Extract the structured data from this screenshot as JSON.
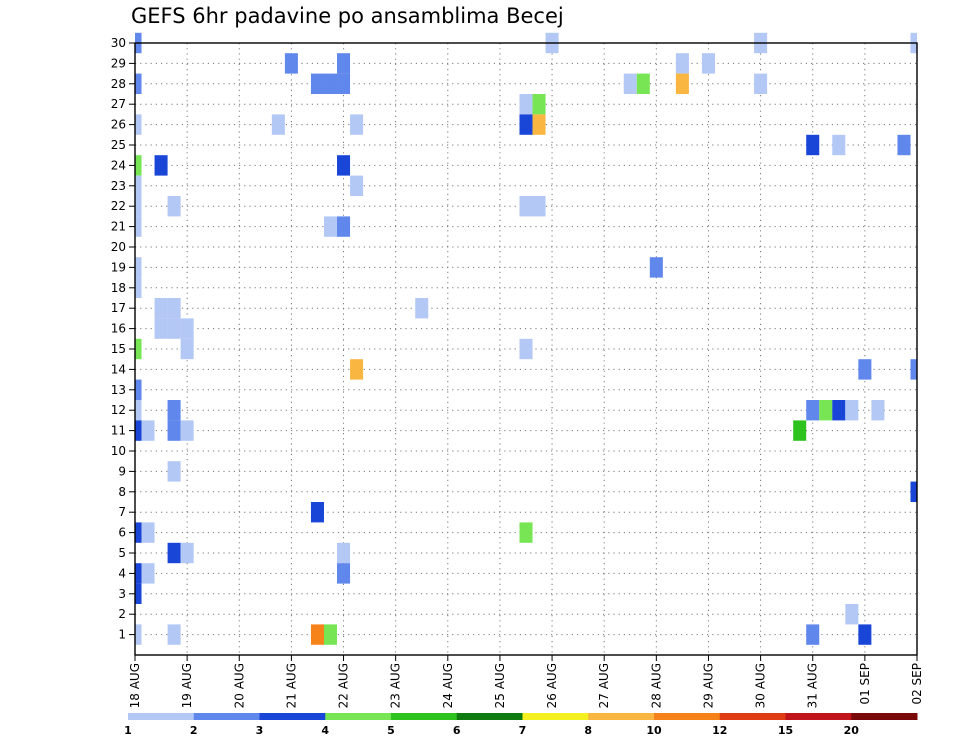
{
  "chart_data": {
    "type": "heatmap",
    "title": "GEFS 6hr padavine po ansamblima Becej",
    "y_ticks": [
      "1",
      "2",
      "3",
      "4",
      "5",
      "6",
      "7",
      "8",
      "9",
      "10",
      "11",
      "12",
      "13",
      "14",
      "15",
      "16",
      "17",
      "18",
      "19",
      "20",
      "21",
      "22",
      "23",
      "24",
      "25",
      "26",
      "27",
      "28",
      "29",
      "30"
    ],
    "x_ticks": [
      "18 AUG",
      "19 AUG",
      "20 AUG",
      "21 AUG",
      "22 AUG",
      "23 AUG",
      "24 AUG",
      "25 AUG",
      "26 AUG",
      "27 AUG",
      "28 AUG",
      "29 AUG",
      "30 AUG",
      "31 AUG",
      "01 SEP",
      "02 SEP"
    ],
    "x_range_days": [
      0,
      15
    ],
    "y_range": [
      0,
      30
    ],
    "step_days": 0.25,
    "grid": true,
    "colorbar": {
      "bounds": [
        "1",
        "2",
        "3",
        "4",
        "5",
        "6",
        "7",
        "8",
        "10",
        "12",
        "15",
        "20"
      ],
      "colors": [
        "#b4c8f5",
        "#5f87ec",
        "#1a46d8",
        "#78e654",
        "#2ec21e",
        "#0f7a0f",
        "#f5f020",
        "#f9b640",
        "#f6821a",
        "#e03c14",
        "#c0141a",
        "#7a0a0a"
      ]
    },
    "cells": [
      {
        "member": 30,
        "day": 0.0,
        "value": 2.5
      },
      {
        "member": 30,
        "day": 8.0,
        "value": 1.5
      },
      {
        "member": 30,
        "day": 12.0,
        "value": 1.5
      },
      {
        "member": 30,
        "day": 15.0,
        "value": 1.5
      },
      {
        "member": 29,
        "day": 3.0,
        "value": 2.5
      },
      {
        "member": 29,
        "day": 4.0,
        "value": 2.5
      },
      {
        "member": 29,
        "day": 10.5,
        "value": 1.5
      },
      {
        "member": 29,
        "day": 11.0,
        "value": 1.5
      },
      {
        "member": 28,
        "day": 0.0,
        "value": 2.5
      },
      {
        "member": 28,
        "day": 3.5,
        "value": 2.5
      },
      {
        "member": 28,
        "day": 3.75,
        "value": 2.5
      },
      {
        "member": 28,
        "day": 4.0,
        "value": 2.5
      },
      {
        "member": 28,
        "day": 9.5,
        "value": 1.5
      },
      {
        "member": 28,
        "day": 9.75,
        "value": 4.5
      },
      {
        "member": 28,
        "day": 10.5,
        "value": 9
      },
      {
        "member": 28,
        "day": 12.0,
        "value": 1.5
      },
      {
        "member": 27,
        "day": 7.5,
        "value": 1.5
      },
      {
        "member": 27,
        "day": 7.75,
        "value": 4.5
      },
      {
        "member": 26,
        "day": 0.0,
        "value": 1.5
      },
      {
        "member": 26,
        "day": 2.75,
        "value": 1.5
      },
      {
        "member": 26,
        "day": 4.25,
        "value": 1.5
      },
      {
        "member": 26,
        "day": 7.5,
        "value": 3.5
      },
      {
        "member": 26,
        "day": 7.75,
        "value": 9
      },
      {
        "member": 25,
        "day": 13.0,
        "value": 3.5
      },
      {
        "member": 25,
        "day": 13.5,
        "value": 1.5
      },
      {
        "member": 25,
        "day": 14.75,
        "value": 2.5
      },
      {
        "member": 24,
        "day": 0.0,
        "value": 4.5
      },
      {
        "member": 24,
        "day": 0.5,
        "value": 3.5
      },
      {
        "member": 24,
        "day": 4.0,
        "value": 3.5
      },
      {
        "member": 23,
        "day": 0.0,
        "value": 1.5
      },
      {
        "member": 23,
        "day": 4.25,
        "value": 1.5
      },
      {
        "member": 22,
        "day": 0.0,
        "value": 1.5
      },
      {
        "member": 22,
        "day": 0.75,
        "value": 1.5
      },
      {
        "member": 22,
        "day": 7.5,
        "value": 1.5
      },
      {
        "member": 22,
        "day": 7.75,
        "value": 1.5
      },
      {
        "member": 21,
        "day": 0.0,
        "value": 1.5
      },
      {
        "member": 21,
        "day": 3.75,
        "value": 1.5
      },
      {
        "member": 21,
        "day": 4.0,
        "value": 2.5
      },
      {
        "member": 19,
        "day": 0.0,
        "value": 1.5
      },
      {
        "member": 19,
        "day": 10.0,
        "value": 2.5
      },
      {
        "member": 18,
        "day": 0.0,
        "value": 1.5
      },
      {
        "member": 17,
        "day": 0.5,
        "value": 1.5
      },
      {
        "member": 17,
        "day": 0.75,
        "value": 1.5
      },
      {
        "member": 17,
        "day": 5.5,
        "value": 1.5
      },
      {
        "member": 16,
        "day": 0.5,
        "value": 1.5
      },
      {
        "member": 16,
        "day": 0.75,
        "value": 1.5
      },
      {
        "member": 16,
        "day": 1.0,
        "value": 1.5
      },
      {
        "member": 15,
        "day": 0.0,
        "value": 4.5
      },
      {
        "member": 15,
        "day": 1.0,
        "value": 1.5
      },
      {
        "member": 15,
        "day": 7.5,
        "value": 1.5
      },
      {
        "member": 14,
        "day": 4.25,
        "value": 9
      },
      {
        "member": 14,
        "day": 14.0,
        "value": 2.5
      },
      {
        "member": 14,
        "day": 15.0,
        "value": 2.5
      },
      {
        "member": 13,
        "day": 0.0,
        "value": 2.5
      },
      {
        "member": 12,
        "day": 0.0,
        "value": 1.5
      },
      {
        "member": 12,
        "day": 0.75,
        "value": 2.5
      },
      {
        "member": 12,
        "day": 13.0,
        "value": 2.5
      },
      {
        "member": 12,
        "day": 13.25,
        "value": 4.5
      },
      {
        "member": 12,
        "day": 13.5,
        "value": 3.5
      },
      {
        "member": 12,
        "day": 13.75,
        "value": 1.5
      },
      {
        "member": 12,
        "day": 14.25,
        "value": 1.5
      },
      {
        "member": 11,
        "day": 0.0,
        "value": 3.5
      },
      {
        "member": 11,
        "day": 0.25,
        "value": 1.5
      },
      {
        "member": 11,
        "day": 0.75,
        "value": 2.5
      },
      {
        "member": 11,
        "day": 1.0,
        "value": 1.5
      },
      {
        "member": 11,
        "day": 12.75,
        "value": 5.5
      },
      {
        "member": 9,
        "day": 0.75,
        "value": 1.5
      },
      {
        "member": 8,
        "day": 15.0,
        "value": 3.5
      },
      {
        "member": 7,
        "day": 3.5,
        "value": 3.5
      },
      {
        "member": 6,
        "day": 0.0,
        "value": 3.5
      },
      {
        "member": 6,
        "day": 0.25,
        "value": 1.5
      },
      {
        "member": 6,
        "day": 7.5,
        "value": 4.5
      },
      {
        "member": 5,
        "day": 0.75,
        "value": 3.5
      },
      {
        "member": 5,
        "day": 1.0,
        "value": 1.5
      },
      {
        "member": 5,
        "day": 4.0,
        "value": 1.5
      },
      {
        "member": 4,
        "day": 0.0,
        "value": 3.5
      },
      {
        "member": 4,
        "day": 0.25,
        "value": 1.5
      },
      {
        "member": 4,
        "day": 4.0,
        "value": 2.5
      },
      {
        "member": 3,
        "day": 0.0,
        "value": 3.5
      },
      {
        "member": 2,
        "day": 13.75,
        "value": 1.5
      },
      {
        "member": 1,
        "day": 0.0,
        "value": 1.5
      },
      {
        "member": 1,
        "day": 0.75,
        "value": 1.5
      },
      {
        "member": 1,
        "day": 3.5,
        "value": 11
      },
      {
        "member": 1,
        "day": 3.75,
        "value": 4.5
      },
      {
        "member": 1,
        "day": 13.0,
        "value": 2.5
      },
      {
        "member": 1,
        "day": 14.0,
        "value": 3.5
      }
    ]
  }
}
